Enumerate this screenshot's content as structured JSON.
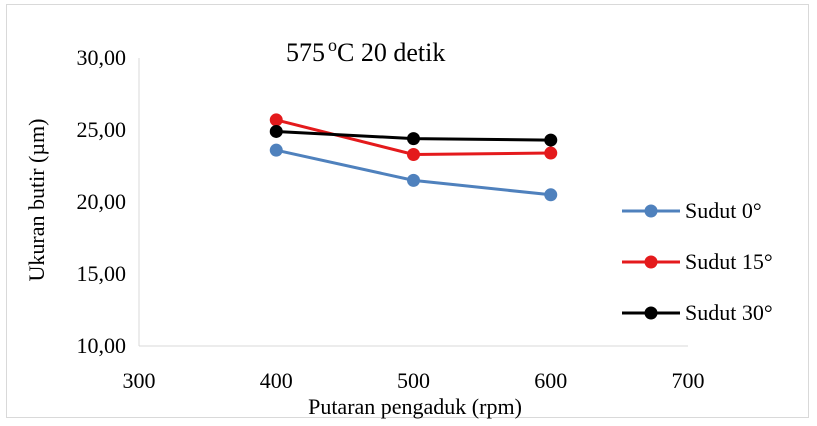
{
  "chart_data": {
    "type": "line",
    "title_main": "575",
    "title_super": "o",
    "title_rest": "C 20 detik",
    "xlabel": "Putaran pengaduk (rpm)",
    "ylabel": "Ukuran butir (µm)",
    "xlim": [
      300,
      700
    ],
    "ylim": [
      10,
      30
    ],
    "x_ticks": [
      300,
      400,
      500,
      600,
      700
    ],
    "x_tick_labels": [
      "300",
      "400",
      "500",
      "600",
      "700"
    ],
    "y_ticks": [
      10,
      15,
      20,
      25,
      30
    ],
    "y_tick_labels": [
      "10,00",
      "15,00",
      "20,00",
      "25,00",
      "30,00"
    ],
    "grid": false,
    "legend_position": "right",
    "series": [
      {
        "name": "Sudut 0°",
        "color": "#4f81bd",
        "x": [
          400,
          500,
          600
        ],
        "values": [
          23.6,
          21.5,
          20.5
        ]
      },
      {
        "name": "Sudut 15°",
        "color": "#e41a1c",
        "x": [
          400,
          500,
          600
        ],
        "values": [
          25.7,
          23.3,
          23.4
        ]
      },
      {
        "name": "Sudut 30°",
        "color": "#000000",
        "x": [
          400,
          500,
          600
        ],
        "values": [
          24.9,
          24.4,
          24.3
        ]
      }
    ]
  }
}
